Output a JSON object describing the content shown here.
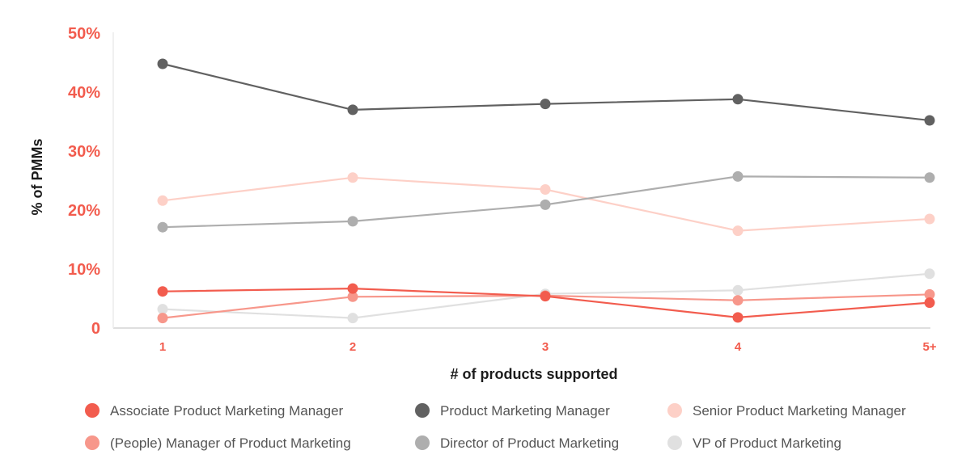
{
  "chart_data": {
    "type": "line",
    "xlabel": "# of products supported",
    "ylabel": "% of PMMs",
    "categories": [
      "1",
      "2",
      "3",
      "4",
      "5+"
    ],
    "yticks": [
      "0",
      "10%",
      "20%",
      "30%",
      "40%",
      "50%"
    ],
    "ylim": [
      0,
      50
    ],
    "grid": false,
    "legend_position": "bottom",
    "series": [
      {
        "name": "Associate Product Marketing Manager",
        "color": "#f25c4e",
        "values": [
          6.2,
          6.7,
          5.4,
          1.8,
          4.3
        ]
      },
      {
        "name": "Product Marketing Manager",
        "color": "#616161",
        "values": [
          44.8,
          37.0,
          38.0,
          38.8,
          35.2
        ]
      },
      {
        "name": "Senior Product Marketing Manager",
        "color": "#fdd0c7",
        "values": [
          21.6,
          25.5,
          23.5,
          16.5,
          18.5
        ]
      },
      {
        "name": "(People) Manager of Product Marketing",
        "color": "#f7978b",
        "values": [
          1.7,
          5.3,
          5.5,
          4.7,
          5.7
        ]
      },
      {
        "name": "Director of Product Marketing",
        "color": "#aeaeae",
        "values": [
          17.1,
          18.1,
          20.9,
          25.7,
          25.5
        ]
      },
      {
        "name": "VP of Product Marketing",
        "color": "#e0e0e0",
        "values": [
          3.2,
          1.7,
          5.8,
          6.4,
          9.2
        ]
      }
    ]
  }
}
